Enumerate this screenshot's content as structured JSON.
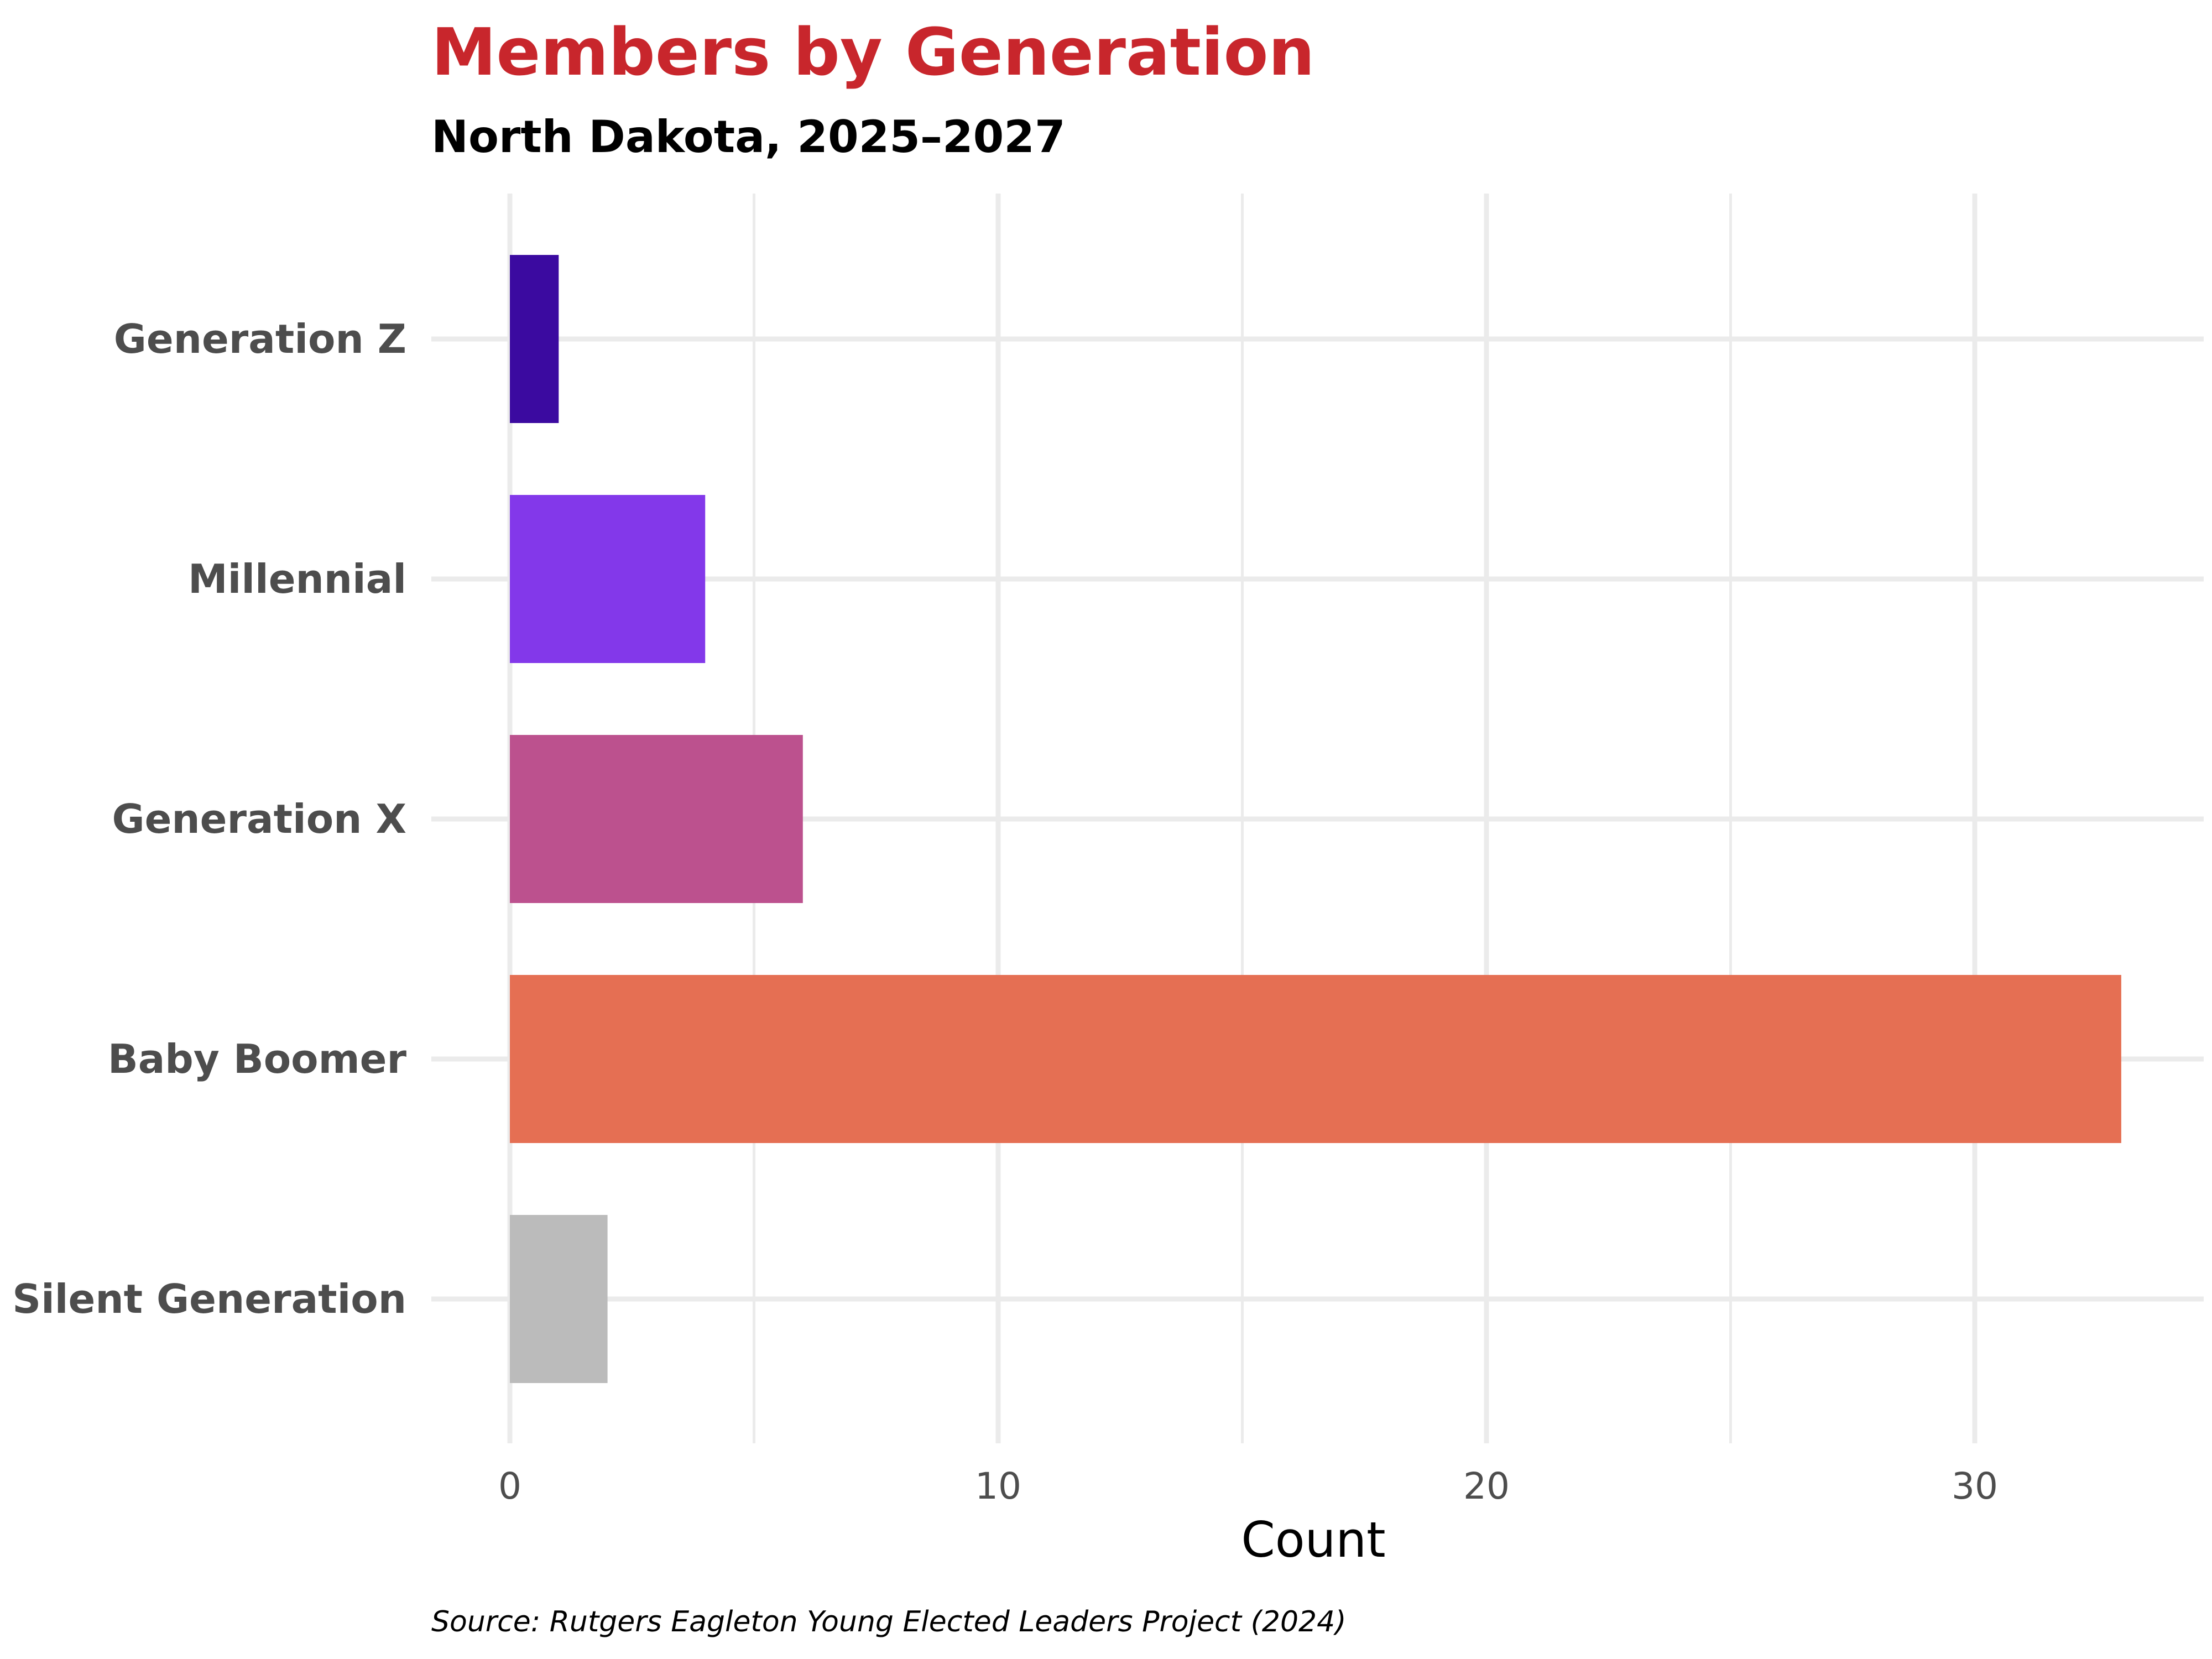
{
  "chart_data": {
    "type": "bar",
    "orientation": "horizontal",
    "title": "Members by Generation",
    "subtitle": "North Dakota, 2025–2027",
    "xlabel": "Count",
    "ylabel": "",
    "categories": [
      "Generation Z",
      "Millennial",
      "Generation X",
      "Baby Boomer",
      "Silent Generation"
    ],
    "values": [
      1,
      4,
      6,
      33,
      2
    ],
    "colors": [
      "#3b0aa0",
      "#8338ea",
      "#bc518e",
      "#e56f53",
      "#bbbbbb"
    ],
    "xlim": [
      0,
      35
    ],
    "xticks": [
      0,
      10,
      20,
      30
    ],
    "xtick_labels": [
      "0",
      "10",
      "20",
      "30"
    ],
    "grid": true,
    "legend": "none",
    "caption": "Source: Rutgers Eagleton Young Elected Leaders Project (2024)"
  },
  "colors": {
    "title": "#c8262c",
    "grid": "#ebebeb"
  }
}
